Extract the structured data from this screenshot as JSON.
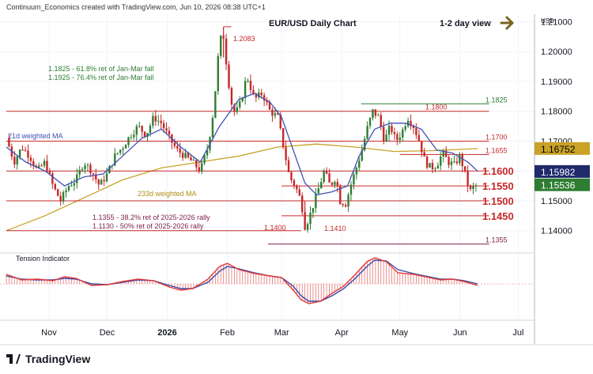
{
  "header": {
    "credit": "Continuum_Economics created with TradingView.com, Jun 10, 2026 08:38 UTC+1",
    "title": "EUR/USD Daily Chart",
    "view": "1-2 day view",
    "currency": "USD"
  },
  "footer": {
    "brand": "TradingView"
  },
  "colors": {
    "candle_up": "#2e7d32",
    "candle_down": "#c62828",
    "wma21": "#3f51b5",
    "wma233": "#c9a227",
    "level_red": "#c62828",
    "level_green": "#2e7d32",
    "level_purple": "#7b1f4b",
    "tension_line_a": "#e53935",
    "tension_line_b": "#3949ab",
    "tension_hist": "#e57373"
  },
  "annotations": {
    "ret_jan_mar_a": "1.1825 - 61.8% ret of Jan-Mar fall",
    "ret_jan_mar_b": "1.1925 - 76.4% ret of Jan-Mar fall",
    "wma21_label": "21d weighted MA",
    "wma233_label": "233d weighted MA",
    "ret_rally_a": "1.1355 - 38.2% ret of 2025-2026 rally",
    "ret_rally_b": "1.1130 - 50% ret of 2025-2026 rally",
    "high_label": "1.2083",
    "low_label": "1.1410",
    "lvl_1400": "1.1400",
    "tension_label": "Tension Indicator"
  },
  "chart_data": {
    "type": "candlestick",
    "title": "EUR/USD Daily Chart",
    "price_ticks": [
      {
        "v": 1.21,
        "label": "1.21000"
      },
      {
        "v": 1.2,
        "label": "1.20000"
      },
      {
        "v": 1.19,
        "label": "1.19000"
      },
      {
        "v": 1.18,
        "label": "1.18000"
      },
      {
        "v": 1.17,
        "label": "1.17000"
      },
      {
        "v": 1.16,
        "label": "1.16000"
      },
      {
        "v": 1.15,
        "label": "1.15000"
      },
      {
        "v": 1.14,
        "label": "1.14000"
      }
    ],
    "ylim": [
      1.1325,
      1.2125
    ],
    "time_ticks": [
      {
        "label": "Nov",
        "d": 22,
        "bold": false
      },
      {
        "label": "Dec",
        "d": 52,
        "bold": false
      },
      {
        "label": "2026",
        "d": 83,
        "bold": true
      },
      {
        "label": "Feb",
        "d": 114,
        "bold": false
      },
      {
        "label": "Mar",
        "d": 142,
        "bold": false
      },
      {
        "label": "Apr",
        "d": 173,
        "bold": false
      },
      {
        "label": "May",
        "d": 203,
        "bold": false
      },
      {
        "label": "Jun",
        "d": 234,
        "bold": false
      },
      {
        "label": "Jul",
        "d": 264,
        "bold": false
      }
    ],
    "xlim_days": [
      0,
      272
    ],
    "levels": [
      {
        "value": 1.1825,
        "label": "1.1825",
        "color": "green",
        "d0": 183,
        "d1": 249
      },
      {
        "value": 1.18,
        "label": "1.1800",
        "color": "red",
        "d0": 0,
        "d1": 249
      },
      {
        "value": 1.17,
        "label": "1.1700",
        "color": "red",
        "d0": 0,
        "d1": 249
      },
      {
        "value": 1.1655,
        "label": "1.1655",
        "color": "red",
        "d0": 203,
        "d1": 249
      },
      {
        "value": 1.16,
        "label": "1.1600",
        "color": "red",
        "d0": 0,
        "d1": 249
      },
      {
        "value": 1.155,
        "label": "1.1550",
        "color": "red",
        "d0": 142,
        "d1": 249
      },
      {
        "value": 1.15,
        "label": "1.1500",
        "color": "red",
        "d0": 0,
        "d1": 249
      },
      {
        "value": 1.145,
        "label": "1.1450",
        "color": "red",
        "d0": 142,
        "d1": 249
      },
      {
        "value": 1.14,
        "label": "1.1400",
        "color": "red",
        "d0": 0,
        "d1": 152
      },
      {
        "value": 1.1355,
        "label": "1.1355",
        "color": "purple",
        "d0": 135,
        "d1": 249
      }
    ],
    "price_badges": [
      {
        "value": 1.16752,
        "label": "1.16752",
        "bg": "#c9a227",
        "fg": "#000000"
      },
      {
        "value": 1.15982,
        "label": "1.15982",
        "bg": "#1f2a6b",
        "fg": "#ffffff"
      },
      {
        "value": 1.15536,
        "label": "1.15536",
        "bg": "#2e7d32",
        "fg": "#ffffff"
      }
    ],
    "path_points": [
      [
        0,
        1.171
      ],
      [
        4,
        1.163
      ],
      [
        8,
        1.168
      ],
      [
        12,
        1.165
      ],
      [
        16,
        1.16
      ],
      [
        20,
        1.163
      ],
      [
        24,
        1.155
      ],
      [
        28,
        1.15
      ],
      [
        32,
        1.155
      ],
      [
        36,
        1.157
      ],
      [
        40,
        1.163
      ],
      [
        44,
        1.16
      ],
      [
        48,
        1.155
      ],
      [
        52,
        1.159
      ],
      [
        56,
        1.165
      ],
      [
        60,
        1.168
      ],
      [
        64,
        1.172
      ],
      [
        68,
        1.175
      ],
      [
        72,
        1.172
      ],
      [
        76,
        1.178
      ],
      [
        80,
        1.176
      ],
      [
        84,
        1.171
      ],
      [
        88,
        1.167
      ],
      [
        92,
        1.165
      ],
      [
        96,
        1.163
      ],
      [
        100,
        1.16
      ],
      [
        104,
        1.168
      ],
      [
        107,
        1.181
      ],
      [
        110,
        1.204
      ],
      [
        112,
        1.205
      ],
      [
        114,
        1.193
      ],
      [
        116,
        1.183
      ],
      [
        118,
        1.179
      ],
      [
        121,
        1.183
      ],
      [
        124,
        1.192
      ],
      [
        128,
        1.184
      ],
      [
        132,
        1.186
      ],
      [
        136,
        1.18
      ],
      [
        140,
        1.178
      ],
      [
        143,
        1.168
      ],
      [
        146,
        1.158
      ],
      [
        149,
        1.155
      ],
      [
        152,
        1.15
      ],
      [
        154,
        1.1415
      ],
      [
        156,
        1.144
      ],
      [
        160,
        1.152
      ],
      [
        164,
        1.16
      ],
      [
        167,
        1.155
      ],
      [
        170,
        1.158
      ],
      [
        172,
        1.15
      ],
      [
        175,
        1.149
      ],
      [
        178,
        1.156
      ],
      [
        180,
        1.16
      ],
      [
        183,
        1.166
      ],
      [
        186,
        1.174
      ],
      [
        189,
        1.18
      ],
      [
        192,
        1.178
      ],
      [
        195,
        1.17
      ],
      [
        198,
        1.175
      ],
      [
        201,
        1.17
      ],
      [
        204,
        1.173
      ],
      [
        207,
        1.178
      ],
      [
        210,
        1.175
      ],
      [
        213,
        1.17
      ],
      [
        216,
        1.163
      ],
      [
        219,
        1.161
      ],
      [
        222,
        1.162
      ],
      [
        225,
        1.166
      ],
      [
        228,
        1.163
      ],
      [
        231,
        1.162
      ],
      [
        234,
        1.165
      ],
      [
        237,
        1.158
      ],
      [
        239,
        1.153
      ],
      [
        241,
        1.1545
      ],
      [
        243,
        1.1554
      ]
    ],
    "wma21": [
      [
        0,
        1.168
      ],
      [
        10,
        1.163
      ],
      [
        20,
        1.16
      ],
      [
        30,
        1.155
      ],
      [
        40,
        1.158
      ],
      [
        50,
        1.159
      ],
      [
        60,
        1.165
      ],
      [
        70,
        1.171
      ],
      [
        80,
        1.174
      ],
      [
        90,
        1.168
      ],
      [
        100,
        1.163
      ],
      [
        110,
        1.175
      ],
      [
        120,
        1.184
      ],
      [
        128,
        1.186
      ],
      [
        136,
        1.183
      ],
      [
        142,
        1.178
      ],
      [
        148,
        1.167
      ],
      [
        154,
        1.156
      ],
      [
        160,
        1.152
      ],
      [
        168,
        1.153
      ],
      [
        176,
        1.155
      ],
      [
        182,
        1.165
      ],
      [
        190,
        1.174
      ],
      [
        198,
        1.176
      ],
      [
        206,
        1.176
      ],
      [
        214,
        1.174
      ],
      [
        222,
        1.167
      ],
      [
        230,
        1.166
      ],
      [
        238,
        1.163
      ],
      [
        243,
        1.16
      ]
    ],
    "wma233": [
      [
        0,
        1.14
      ],
      [
        20,
        1.145
      ],
      [
        40,
        1.151
      ],
      [
        60,
        1.157
      ],
      [
        80,
        1.161
      ],
      [
        100,
        1.163
      ],
      [
        120,
        1.165
      ],
      [
        140,
        1.168
      ],
      [
        160,
        1.169
      ],
      [
        180,
        1.168
      ],
      [
        200,
        1.1665
      ],
      [
        220,
        1.1668
      ],
      [
        243,
        1.1675
      ]
    ],
    "tension_a": [
      [
        0,
        1.2
      ],
      [
        8,
        0.5
      ],
      [
        16,
        0.6
      ],
      [
        24,
        0.4
      ],
      [
        30,
        0.9
      ],
      [
        36,
        0.7
      ],
      [
        44,
        -0.2
      ],
      [
        52,
        -0.1
      ],
      [
        60,
        0.3
      ],
      [
        68,
        0.6
      ],
      [
        76,
        0.4
      ],
      [
        84,
        -0.4
      ],
      [
        90,
        -0.8
      ],
      [
        96,
        -0.6
      ],
      [
        104,
        0.6
      ],
      [
        110,
        2.2
      ],
      [
        114,
        2.6
      ],
      [
        120,
        1.8
      ],
      [
        128,
        1.3
      ],
      [
        136,
        1.0
      ],
      [
        142,
        0.8
      ],
      [
        148,
        -0.8
      ],
      [
        152,
        -2.0
      ],
      [
        156,
        -2.5
      ],
      [
        162,
        -2.2
      ],
      [
        168,
        -1.2
      ],
      [
        174,
        -0.3
      ],
      [
        180,
        1.2
      ],
      [
        186,
        2.8
      ],
      [
        190,
        3.3
      ],
      [
        196,
        2.8
      ],
      [
        202,
        1.4
      ],
      [
        210,
        1.2
      ],
      [
        218,
        0.8
      ],
      [
        224,
        0.5
      ],
      [
        230,
        0.6
      ],
      [
        236,
        0.3
      ],
      [
        243,
        -0.2
      ]
    ],
    "tension_b": [
      [
        0,
        1.0
      ],
      [
        8,
        0.6
      ],
      [
        16,
        0.5
      ],
      [
        24,
        0.5
      ],
      [
        30,
        0.7
      ],
      [
        36,
        0.6
      ],
      [
        44,
        0.0
      ],
      [
        52,
        -0.1
      ],
      [
        60,
        0.2
      ],
      [
        68,
        0.5
      ],
      [
        76,
        0.4
      ],
      [
        84,
        -0.2
      ],
      [
        90,
        -0.6
      ],
      [
        96,
        -0.6
      ],
      [
        104,
        0.2
      ],
      [
        110,
        1.6
      ],
      [
        114,
        2.2
      ],
      [
        120,
        1.9
      ],
      [
        128,
        1.4
      ],
      [
        136,
        1.0
      ],
      [
        142,
        0.8
      ],
      [
        148,
        -0.3
      ],
      [
        152,
        -1.5
      ],
      [
        156,
        -2.2
      ],
      [
        162,
        -2.2
      ],
      [
        168,
        -1.5
      ],
      [
        174,
        -0.6
      ],
      [
        180,
        0.7
      ],
      [
        186,
        2.2
      ],
      [
        190,
        3.0
      ],
      [
        196,
        2.9
      ],
      [
        202,
        1.8
      ],
      [
        210,
        1.3
      ],
      [
        218,
        0.9
      ],
      [
        224,
        0.6
      ],
      [
        230,
        0.6
      ],
      [
        236,
        0.4
      ],
      [
        243,
        0.0
      ]
    ]
  }
}
